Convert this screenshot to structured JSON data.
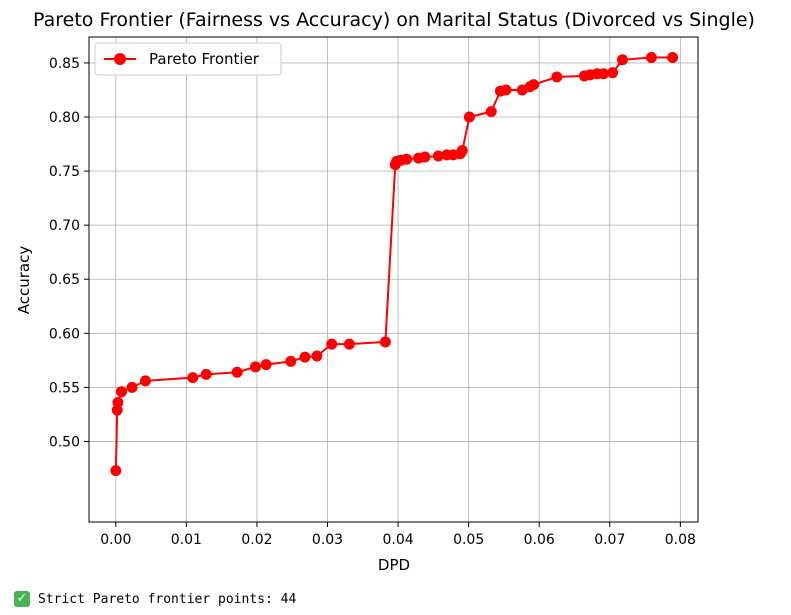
{
  "chart_data": {
    "type": "line",
    "title": "Pareto Frontier (Fairness vs Accuracy) on Marital Status (Divorced vs Single)",
    "xlabel": "DPD",
    "ylabel": "Accuracy",
    "xlim": [
      -0.0038,
      0.0825
    ],
    "ylim": [
      0.4255,
      0.874
    ],
    "x_ticks": [
      0.0,
      0.01,
      0.02,
      0.03,
      0.04,
      0.05,
      0.06,
      0.07,
      0.08
    ],
    "x_tick_labels": [
      "0.00",
      "0.01",
      "0.02",
      "0.03",
      "0.04",
      "0.05",
      "0.06",
      "0.07",
      "0.08"
    ],
    "y_ticks": [
      0.5,
      0.55,
      0.6,
      0.65,
      0.7,
      0.75,
      0.8,
      0.85
    ],
    "y_tick_labels": [
      "0.50",
      "0.55",
      "0.60",
      "0.65",
      "0.70",
      "0.75",
      "0.80",
      "0.85"
    ],
    "grid": true,
    "legend_position": "upper-left",
    "series": [
      {
        "name": "Pareto Frontier",
        "color": "#ff0000",
        "marker": "circle",
        "points": [
          [
            0.0,
            0.473
          ],
          [
            0.0002,
            0.529
          ],
          [
            0.0003,
            0.536
          ],
          [
            0.0008,
            0.546
          ],
          [
            0.0023,
            0.55
          ],
          [
            0.0042,
            0.556
          ],
          [
            0.0109,
            0.559
          ],
          [
            0.0128,
            0.562
          ],
          [
            0.0172,
            0.564
          ],
          [
            0.0198,
            0.569
          ],
          [
            0.0213,
            0.571
          ],
          [
            0.0248,
            0.574
          ],
          [
            0.0268,
            0.578
          ],
          [
            0.0285,
            0.579
          ],
          [
            0.0306,
            0.59
          ],
          [
            0.0331,
            0.59
          ],
          [
            0.0382,
            0.592
          ],
          [
            0.0396,
            0.756
          ],
          [
            0.0398,
            0.759
          ],
          [
            0.0404,
            0.76
          ],
          [
            0.0412,
            0.761
          ],
          [
            0.0429,
            0.762
          ],
          [
            0.0438,
            0.763
          ],
          [
            0.0457,
            0.764
          ],
          [
            0.0469,
            0.765
          ],
          [
            0.0478,
            0.765
          ],
          [
            0.0488,
            0.766
          ],
          [
            0.0491,
            0.769
          ],
          [
            0.0501,
            0.8
          ],
          [
            0.0532,
            0.805
          ],
          [
            0.0545,
            0.824
          ],
          [
            0.0553,
            0.825
          ],
          [
            0.0576,
            0.825
          ],
          [
            0.0587,
            0.828
          ],
          [
            0.0592,
            0.83
          ],
          [
            0.0625,
            0.837
          ],
          [
            0.0664,
            0.838
          ],
          [
            0.0672,
            0.839
          ],
          [
            0.0682,
            0.84
          ],
          [
            0.0691,
            0.84
          ],
          [
            0.0704,
            0.841
          ],
          [
            0.0718,
            0.853
          ],
          [
            0.0759,
            0.855
          ],
          [
            0.0789,
            0.855
          ]
        ]
      }
    ]
  },
  "output": {
    "icon": "check-mark-icon",
    "text": "Strict Pareto frontier points: 44"
  }
}
